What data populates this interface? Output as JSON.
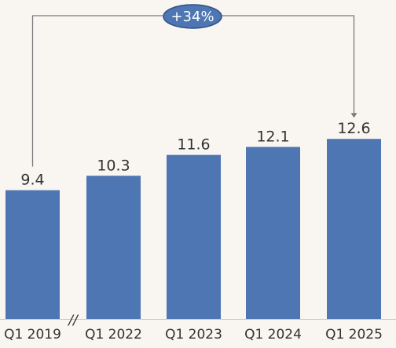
{
  "chart_data": {
    "type": "bar",
    "categories": [
      "Q1 2019",
      "Q1 2022",
      "Q1 2023",
      "Q1 2024",
      "Q1 2025"
    ],
    "values": [
      9.4,
      10.3,
      11.6,
      12.1,
      12.6
    ],
    "value_labels": [
      "9.4",
      "10.3",
      "11.6",
      "12.1",
      "12.6"
    ],
    "title": "",
    "xlabel": "",
    "ylabel": "",
    "grid": false,
    "axis_break": "//",
    "annotation": {
      "text": "+34%",
      "from": "Q1 2019",
      "to": "Q1 2025"
    },
    "colors": {
      "bar": "#4e76b2",
      "callout_fill": "#4e76b2",
      "callout_stroke": "#2f4f86",
      "connector": "#7a7a7a",
      "background": "#f9f6f1"
    }
  }
}
